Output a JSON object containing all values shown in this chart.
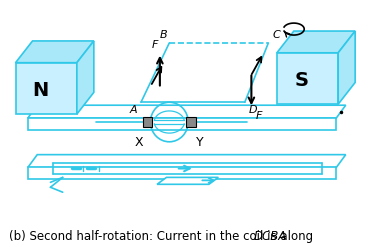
{
  "cyan": "#30C8E8",
  "cyan_fill": "#A8E8F8",
  "cyan_light": "#C8F0FF",
  "black": "#000000",
  "bg": "#FFFFFF",
  "caption_normal": "(b) Second half-rotation: Current in the coil is along ",
  "caption_italic": "DCBA",
  "label_N": "N",
  "label_S": "S",
  "label_A": "A",
  "label_B": "B",
  "label_C": "C",
  "label_D": "D",
  "label_F1": "F",
  "label_F2": "F",
  "label_X": "X",
  "label_Y": "Y",
  "figsize": [
    3.81,
    2.47
  ],
  "dpi": 100
}
